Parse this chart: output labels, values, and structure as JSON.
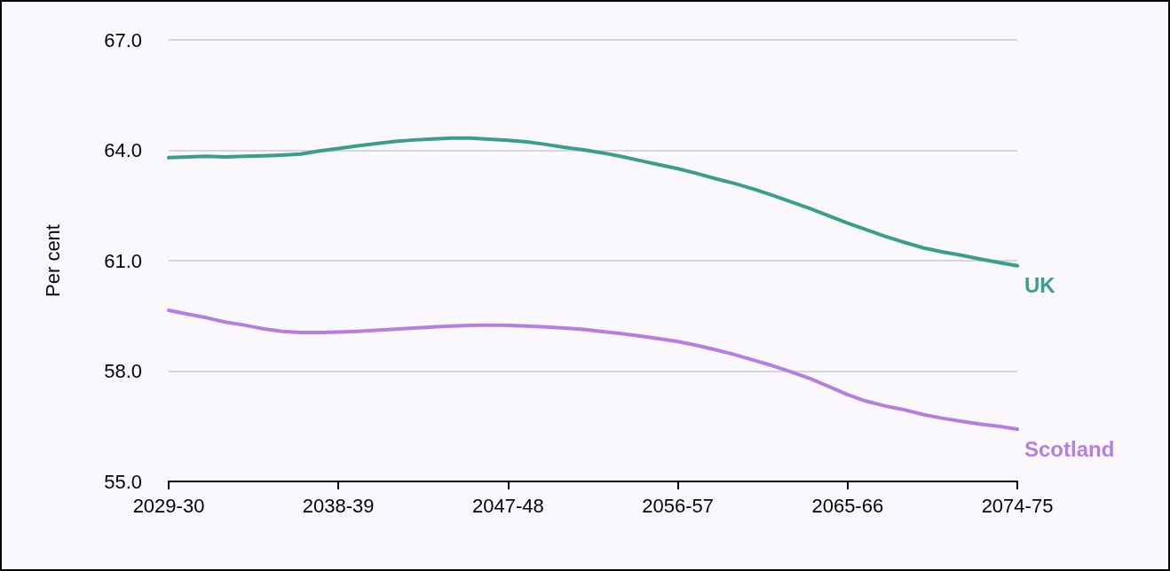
{
  "chart_data": {
    "type": "line",
    "ylabel": "Per cent",
    "categories": [
      "2029-30",
      null,
      null,
      null,
      null,
      null,
      null,
      null,
      null,
      "2038-39",
      null,
      null,
      null,
      null,
      null,
      null,
      null,
      null,
      "2047-48",
      null,
      null,
      null,
      null,
      null,
      null,
      null,
      null,
      "2056-57",
      null,
      null,
      null,
      null,
      null,
      null,
      null,
      null,
      "2065-66",
      null,
      null,
      null,
      null,
      null,
      null,
      null,
      null,
      "2074-75"
    ],
    "series": [
      {
        "name": "UK",
        "color": "#3a9e8e",
        "values": [
          63.8,
          63.82,
          63.84,
          63.82,
          63.84,
          63.85,
          63.87,
          63.9,
          63.98,
          64.05,
          64.12,
          64.18,
          64.24,
          64.28,
          64.31,
          64.33,
          64.33,
          64.3,
          64.27,
          64.23,
          64.16,
          64.08,
          64.01,
          63.93,
          63.83,
          63.72,
          63.61,
          63.5,
          63.37,
          63.23,
          63.1,
          62.95,
          62.78,
          62.6,
          62.42,
          62.22,
          62.02,
          61.84,
          61.66,
          61.5,
          61.35,
          61.24,
          61.15,
          61.05,
          60.95,
          60.86
        ]
      },
      {
        "name": "Scotland",
        "color": "#b57ee0",
        "values": [
          59.65,
          59.55,
          59.45,
          59.33,
          59.25,
          59.15,
          59.08,
          59.05,
          59.05,
          59.06,
          59.08,
          59.11,
          59.14,
          59.17,
          59.2,
          59.22,
          59.24,
          59.25,
          59.24,
          59.22,
          59.2,
          59.17,
          59.13,
          59.07,
          59.02,
          58.95,
          58.88,
          58.8,
          58.7,
          58.58,
          58.45,
          58.3,
          58.15,
          57.98,
          57.8,
          57.58,
          57.36,
          57.18,
          57.05,
          56.95,
          56.82,
          56.72,
          56.64,
          56.56,
          56.5,
          56.42
        ]
      }
    ],
    "ylim": [
      55,
      67
    ],
    "yticks": [
      {
        "value": 55,
        "label": "55.0"
      },
      {
        "value": 58,
        "label": "58.0"
      },
      {
        "value": 61,
        "label": "61.0"
      },
      {
        "value": 64,
        "label": "64.0"
      },
      {
        "value": 67,
        "label": "67.0"
      }
    ],
    "grid": "y",
    "marker": "none",
    "line_style": "solid"
  }
}
